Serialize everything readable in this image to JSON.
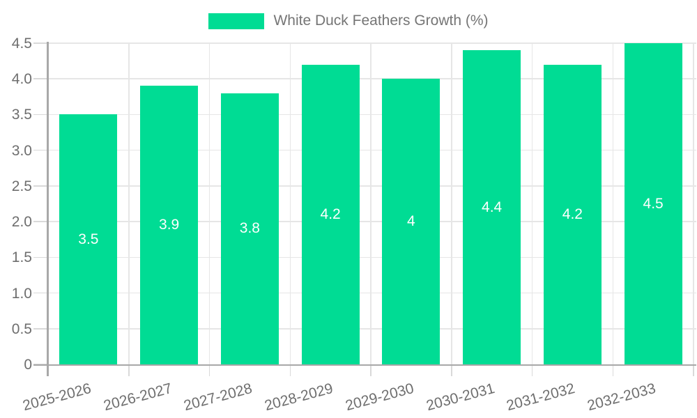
{
  "chart_data": {
    "type": "bar",
    "title": "White Duck Feathers Growth (%)",
    "legend_position": "top",
    "grid": true,
    "categories": [
      "2025-2026",
      "2026-2027",
      "2027-2028",
      "2028-2029",
      "2029-2030",
      "2030-2031",
      "2031-2032",
      "2032-2033"
    ],
    "values": [
      3.5,
      3.9,
      3.8,
      4.2,
      4,
      4.4,
      4.2,
      4.5
    ],
    "value_labels": [
      "3.5",
      "3.9",
      "3.8",
      "4.2",
      "4",
      "4.4",
      "4.2",
      "4.5"
    ],
    "xlabel": "",
    "ylabel": "",
    "ylim": [
      0,
      4.5
    ],
    "y_tick_labels": [
      "0",
      "0.5",
      "1.0",
      "1.5",
      "2.0",
      "2.5",
      "3.0",
      "3.5",
      "4.0",
      "4.5"
    ],
    "colors": {
      "bar": "#00DC94",
      "grid": "#e6e6e6",
      "tick": "#d9d9d9",
      "axis": "#a8a8a8",
      "axis_label": "#6e6e6e",
      "legend_text": "#757575",
      "value_label": "#ffffff",
      "background": "#ffffff"
    }
  }
}
